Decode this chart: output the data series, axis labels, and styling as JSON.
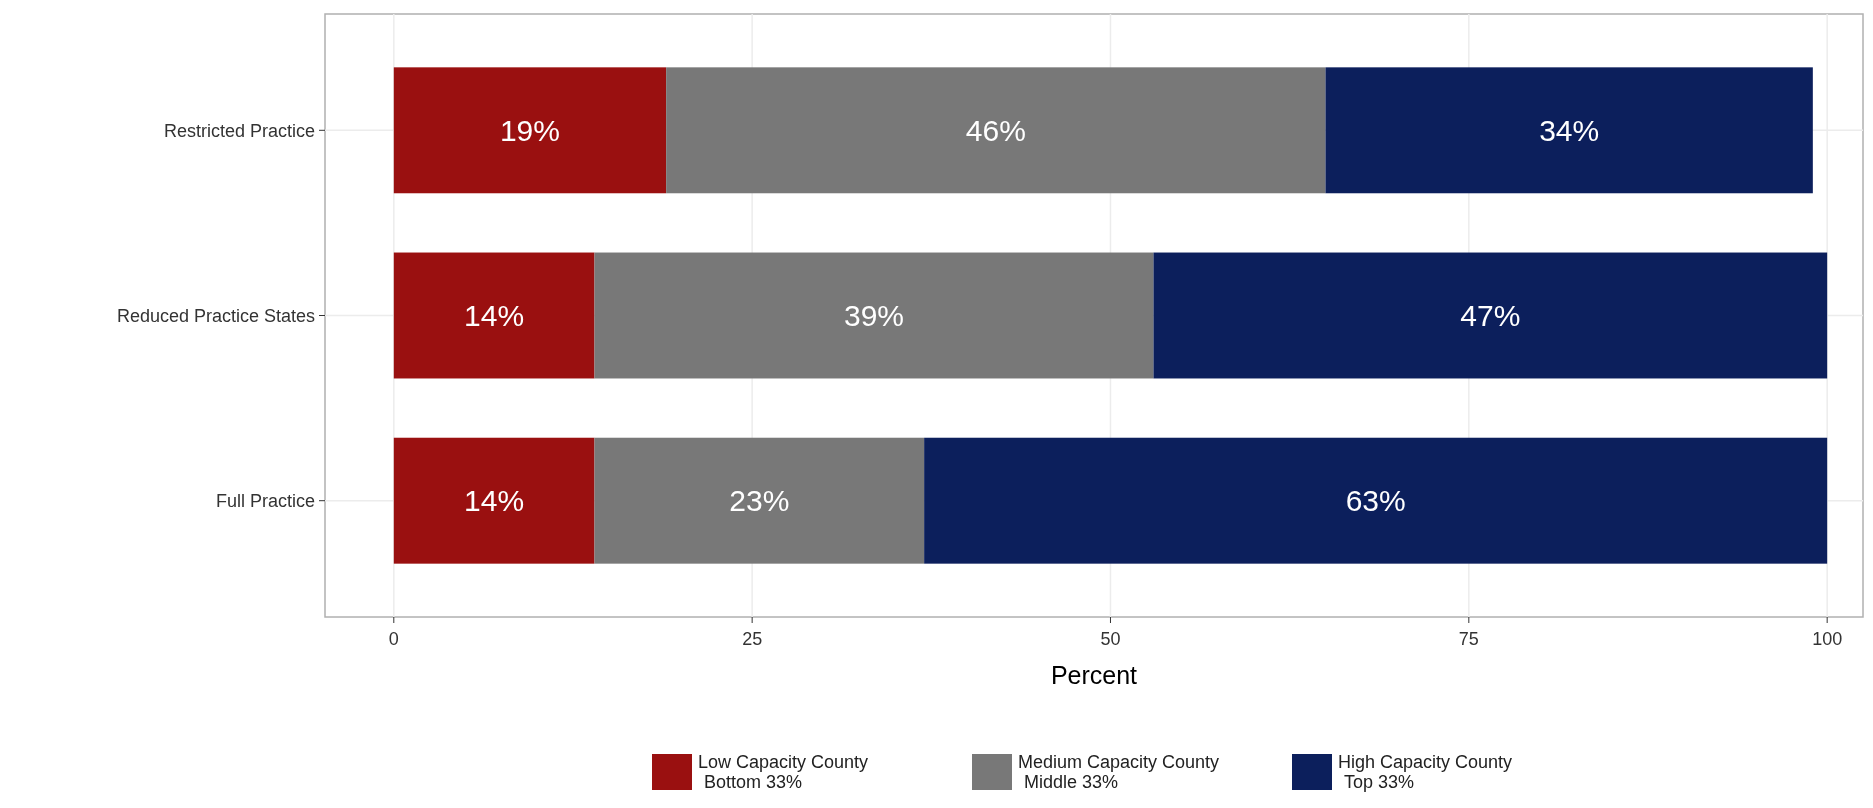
{
  "chart_data": {
    "type": "bar",
    "orientation": "horizontal",
    "stacked": true,
    "xlabel": "Percent",
    "categories": [
      "Restricted Practice",
      "Reduced Practice States",
      "Full Practice"
    ],
    "series": [
      {
        "name": "Low Capacity County Bottom 33%",
        "color": "#9a1010",
        "values": [
          19,
          14,
          14
        ],
        "value_labels": [
          "19%",
          "14%",
          "14%"
        ]
      },
      {
        "name": "Medium Capacity County Middle 33%",
        "color": "#787878",
        "values": [
          46,
          39,
          23
        ],
        "value_labels": [
          "46%",
          "39%",
          "23%"
        ]
      },
      {
        "name": "High Capacity County Top 33%",
        "color": "#0c1f5c",
        "values": [
          34,
          47,
          63
        ],
        "value_labels": [
          "34%",
          "47%",
          "63%"
        ]
      }
    ],
    "xlim": [
      -4.8,
      102.5
    ],
    "xticks": [
      0,
      25,
      50,
      75,
      100
    ],
    "grid": true,
    "legend": "bottom"
  }
}
